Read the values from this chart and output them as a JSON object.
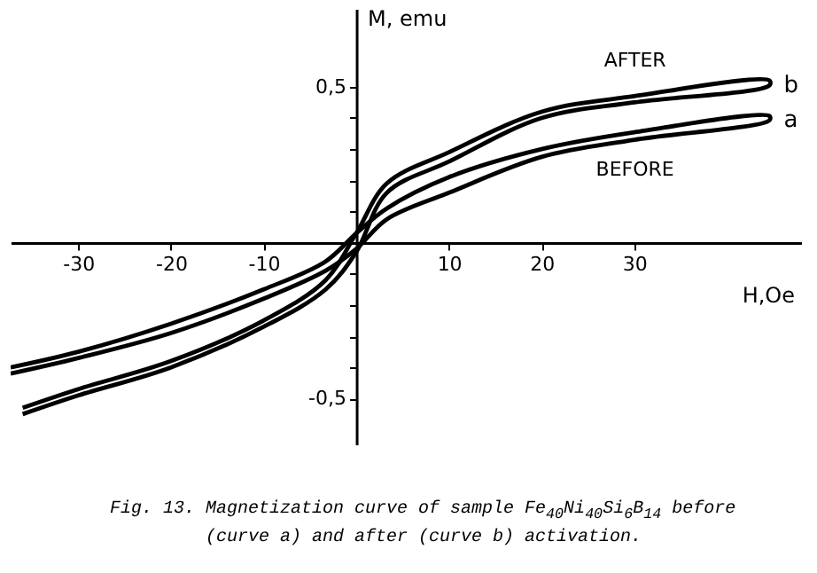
{
  "chart_data": {
    "type": "line",
    "xlabel": "H,Oe",
    "ylabel": "M, emu",
    "xlim": [
      -37.3,
      48
    ],
    "ylim": [
      -0.65,
      0.75
    ],
    "xticks": [
      -30,
      -20,
      -10,
      10,
      20,
      30
    ],
    "yticks": [
      {
        "value": 0.5,
        "label": "0,5"
      },
      {
        "value": 0.4,
        "label": null
      },
      {
        "value": 0.3,
        "label": null
      },
      {
        "value": 0.2,
        "label": null
      },
      {
        "value": 0.1,
        "label": null
      },
      {
        "value": -0.1,
        "label": null
      },
      {
        "value": -0.2,
        "label": null
      },
      {
        "value": -0.3,
        "label": null
      },
      {
        "value": -0.4,
        "label": null
      },
      {
        "value": -0.5,
        "label": "-0,5"
      }
    ],
    "grid": false,
    "legend": false,
    "marker": "none",
    "line_style": "solid",
    "series": [
      {
        "name": "a",
        "color": "#000000",
        "x": [
          -37.3,
          -30,
          -20,
          -10,
          -3.3,
          0,
          3.3,
          10,
          20,
          30,
          44.6,
          44.6,
          30,
          20,
          10,
          3.3,
          0,
          -3.3,
          -10,
          -20,
          -30,
          -37.3
        ],
        "values": [
          -0.42,
          -0.37,
          -0.29,
          -0.18,
          -0.09,
          -0.02,
          0.075,
          0.16,
          0.275,
          0.33,
          0.393,
          0.406,
          0.354,
          0.3,
          0.21,
          0.11,
          0.03,
          -0.06,
          -0.15,
          -0.26,
          -0.35,
          -0.4
        ]
      },
      {
        "name": "b",
        "color": "#000000",
        "x": [
          -36,
          -30,
          -20,
          -10,
          -3.3,
          0,
          3.3,
          10,
          20,
          30,
          44.6,
          44.6,
          30,
          20,
          10,
          3.3,
          0,
          -3.3,
          -10,
          -20,
          -30,
          -36
        ],
        "values": [
          -0.55,
          -0.49,
          -0.4,
          -0.27,
          -0.15,
          -0.03,
          0.16,
          0.26,
          0.4,
          0.45,
          0.505,
          0.52,
          0.47,
          0.42,
          0.29,
          0.19,
          0.03,
          -0.12,
          -0.25,
          -0.38,
          -0.47,
          -0.53
        ]
      }
    ],
    "annotations": [
      "AFTER",
      "BEFORE",
      "Fig. 13. Magnetization curve of sample Fe$_{40}$Ni$_{40}$Si$_{6}$B$_{14}$ before (curve a) and after (curve b) activation."
    ]
  }
}
